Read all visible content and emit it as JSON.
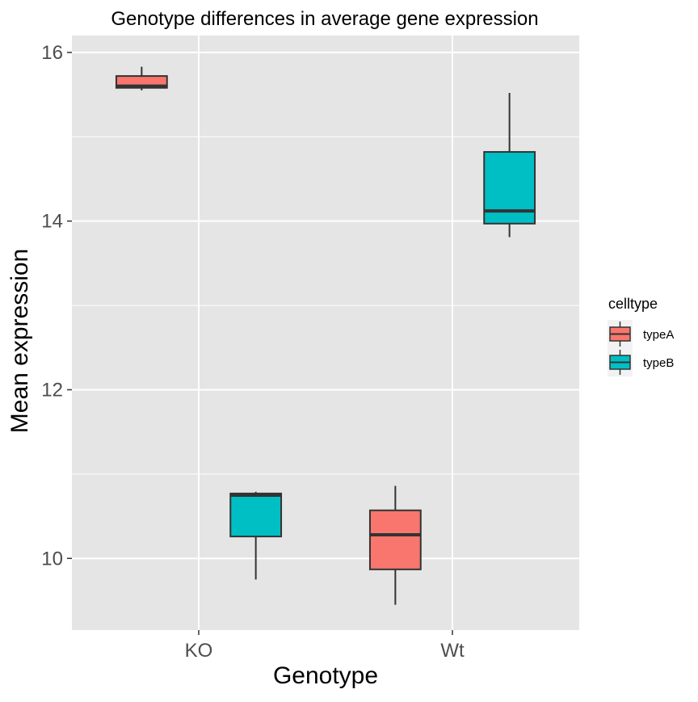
{
  "chart_data": {
    "type": "boxplot",
    "title": "Genotype differences in average gene expression",
    "xlabel": "Genotype",
    "ylabel": "Mean expression",
    "categories": [
      "KO",
      "Wt"
    ],
    "ylim": [
      9.15,
      16.2
    ],
    "yticks": [
      10,
      12,
      14,
      16
    ],
    "grid": true,
    "legend": {
      "title": "celltype",
      "placement": "right",
      "entries": [
        {
          "label": "typeA",
          "color": "#F8766D"
        },
        {
          "label": "typeB",
          "color": "#00BFC4"
        }
      ]
    },
    "series": [
      {
        "name": "typeA",
        "color": "#F8766D",
        "boxes": [
          {
            "category": "KO",
            "min": 15.55,
            "q1": 15.58,
            "median": 15.6,
            "q3": 15.72,
            "max": 15.83
          },
          {
            "category": "Wt",
            "min": 9.45,
            "q1": 9.87,
            "median": 10.28,
            "q3": 10.57,
            "max": 10.86
          }
        ]
      },
      {
        "name": "typeB",
        "color": "#00BFC4",
        "boxes": [
          {
            "category": "KO",
            "min": 9.75,
            "q1": 10.26,
            "median": 10.75,
            "q3": 10.77,
            "max": 10.79
          },
          {
            "category": "Wt",
            "min": 13.81,
            "q1": 13.97,
            "median": 14.12,
            "q3": 14.82,
            "max": 15.52
          }
        ]
      }
    ]
  },
  "colors": {
    "panel_background": "#E5E5E5",
    "grid": "#FFFFFF",
    "box_outline": "#333333"
  }
}
